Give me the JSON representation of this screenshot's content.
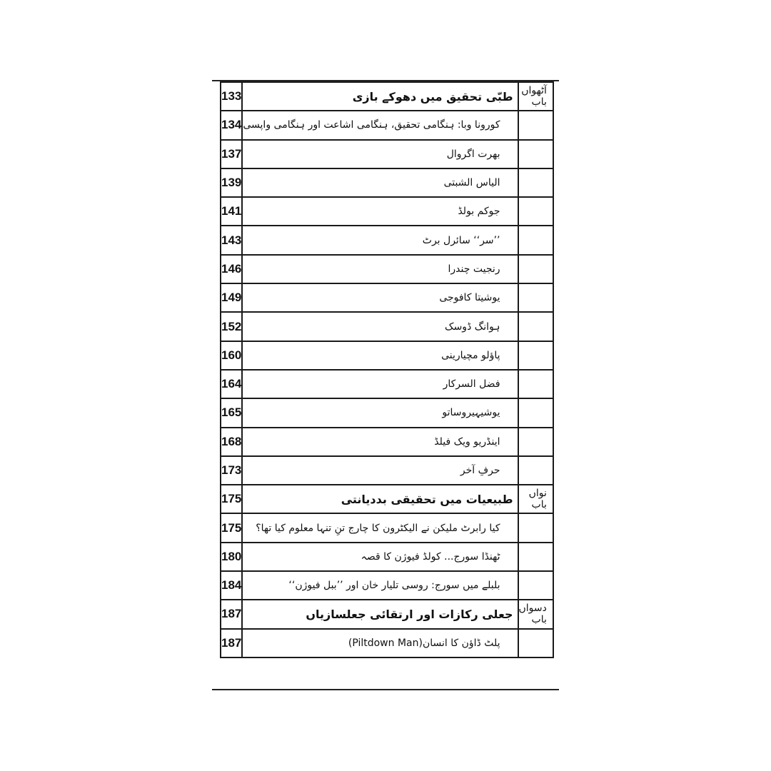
{
  "toc": {
    "rows": [
      {
        "page": "133",
        "title": "طبّی تحقیق میں دھوکے بازی",
        "chapter": "آٹھواں باب",
        "head": true
      },
      {
        "page": "134",
        "title": "کورونا وبا: ہنگامی تحقیق، ہنگامی اشاعت اور ہنگامی واپسی",
        "chapter": ""
      },
      {
        "page": "137",
        "title": "بھرت اگروال",
        "chapter": ""
      },
      {
        "page": "139",
        "title": "الیاس الشبتی",
        "chapter": ""
      },
      {
        "page": "141",
        "title": "جوکم بولڈ",
        "chapter": ""
      },
      {
        "page": "143",
        "title": "’’سر‘‘ سائرل برٹ",
        "chapter": ""
      },
      {
        "page": "146",
        "title": "رنجیت چندرا",
        "chapter": ""
      },
      {
        "page": "149",
        "title": "یوشیتا کافوجی",
        "chapter": ""
      },
      {
        "page": "152",
        "title": "ہوانگ ڈوسک",
        "chapter": ""
      },
      {
        "page": "160",
        "title": "پاؤلو مچیارینی",
        "chapter": ""
      },
      {
        "page": "164",
        "title": "فضل السرکار",
        "chapter": ""
      },
      {
        "page": "165",
        "title": "یوشیہیروساتو",
        "chapter": ""
      },
      {
        "page": "168",
        "title": "اینڈریو ویک فیلڈ",
        "chapter": ""
      },
      {
        "page": "173",
        "title": "حرفِ آخر",
        "chapter": ""
      },
      {
        "page": "175",
        "title": "طبیعیات میں تحقیقی بددیانتی",
        "chapter": "نواں باب",
        "head": true
      },
      {
        "page": "175",
        "title": "کیا رابرٹ ملیکن نے الیکٹرون کا چارج تنِ تنہا معلوم کیا تھا؟",
        "chapter": ""
      },
      {
        "page": "180",
        "title": "ٹھنڈا سورج... کولڈ فیوژن کا قصہ",
        "chapter": ""
      },
      {
        "page": "184",
        "title": "بلبلے میں سورج: روسی تلیار خان اور ’’ببل فیوژن‘‘",
        "chapter": ""
      },
      {
        "page": "187",
        "title": "جعلی رکازات اور ارتقائی جعلسازیاں",
        "chapter": "دسواں باب",
        "head": true
      },
      {
        "page": "187",
        "title": "پلٹ ڈاؤن کا انسان(Piltdown Man)",
        "chapter": ""
      }
    ]
  }
}
